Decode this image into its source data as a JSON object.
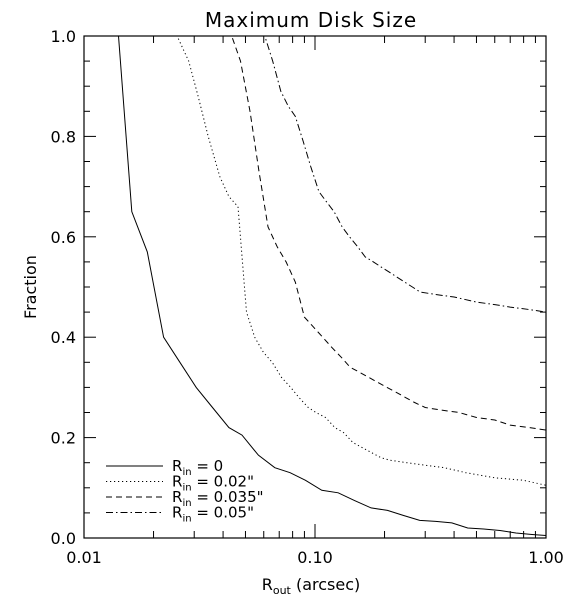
{
  "chart_data": {
    "type": "line",
    "title": "Maximum Disk Size",
    "xlabel": {
      "main": "R",
      "sub": "out",
      "rest": " (arcsec)"
    },
    "ylabel": "Fraction",
    "xscale": "log",
    "xlim": [
      0.01,
      1.0
    ],
    "ylim": [
      0.0,
      1.0
    ],
    "x_ticks": [
      {
        "value": 0.01,
        "label": "0.01"
      },
      {
        "value": 0.1,
        "label": "0.10"
      },
      {
        "value": 1.0,
        "label": "1.00"
      }
    ],
    "y_ticks": [
      {
        "value": 0.0,
        "label": "0.0"
      },
      {
        "value": 0.2,
        "label": "0.2"
      },
      {
        "value": 0.4,
        "label": "0.4"
      },
      {
        "value": 0.6,
        "label": "0.6"
      },
      {
        "value": 0.8,
        "label": "0.8"
      },
      {
        "value": 1.0,
        "label": "1.0"
      }
    ],
    "grid": false,
    "legend_position": "bottom-left",
    "series": [
      {
        "name": {
          "main": "R",
          "sub": "in",
          "rest": " = 0"
        },
        "style": "solid",
        "x": [
          0.0141,
          0.0161,
          0.0188,
          0.0221,
          0.026,
          0.0306,
          0.036,
          0.0424,
          0.0483,
          0.0569,
          0.067,
          0.078,
          0.091,
          0.107,
          0.126,
          0.148,
          0.175,
          0.206,
          0.241,
          0.284,
          0.333,
          0.391,
          0.458,
          0.537,
          0.632,
          0.741,
          0.87,
          1.0
        ],
        "y": [
          1.0,
          0.65,
          0.57,
          0.4,
          0.35,
          0.3,
          0.26,
          0.22,
          0.205,
          0.165,
          0.14,
          0.13,
          0.115,
          0.095,
          0.09,
          0.075,
          0.06,
          0.055,
          0.045,
          0.035,
          0.033,
          0.03,
          0.02,
          0.018,
          0.015,
          0.01,
          0.007,
          0.005
        ]
      },
      {
        "name": {
          "main": "R",
          "sub": "in",
          "rest": " = 0.02\""
        },
        "style": "dotted",
        "x": [
          0.0253,
          0.0284,
          0.0312,
          0.0345,
          0.0387,
          0.0424,
          0.0464,
          0.0505,
          0.0548,
          0.0598,
          0.0653,
          0.0716,
          0.0785,
          0.0852,
          0.0934,
          0.101,
          0.111,
          0.122,
          0.133,
          0.146,
          0.16,
          0.176,
          0.193,
          0.211,
          0.25,
          0.3,
          0.363,
          0.45,
          0.6,
          0.8,
          1.0
        ],
        "y": [
          1.0,
          0.95,
          0.88,
          0.8,
          0.72,
          0.68,
          0.66,
          0.45,
          0.4,
          0.37,
          0.35,
          0.32,
          0.3,
          0.28,
          0.26,
          0.25,
          0.24,
          0.22,
          0.21,
          0.19,
          0.18,
          0.17,
          0.16,
          0.155,
          0.15,
          0.145,
          0.14,
          0.13,
          0.12,
          0.115,
          0.105
        ]
      },
      {
        "name": {
          "main": "R",
          "sub": "in",
          "rest": " = 0.035\""
        },
        "style": "dashed",
        "x": [
          0.0436,
          0.0476,
          0.0523,
          0.0572,
          0.0626,
          0.0686,
          0.075,
          0.0822,
          0.09,
          0.0986,
          0.108,
          0.118,
          0.13,
          0.142,
          0.156,
          0.171,
          0.187,
          0.205,
          0.225,
          0.246,
          0.27,
          0.3,
          0.35,
          0.42,
          0.5,
          0.6,
          0.7,
          0.85,
          1.0
        ],
        "y": [
          1.0,
          0.95,
          0.85,
          0.73,
          0.62,
          0.58,
          0.55,
          0.51,
          0.44,
          0.42,
          0.4,
          0.38,
          0.36,
          0.34,
          0.33,
          0.32,
          0.31,
          0.3,
          0.29,
          0.28,
          0.27,
          0.26,
          0.255,
          0.25,
          0.24,
          0.235,
          0.225,
          0.22,
          0.215
        ]
      },
      {
        "name": {
          "main": "R",
          "sub": "in",
          "rest": " = 0.05\""
        },
        "style": "dashdot",
        "x": [
          0.0606,
          0.0656,
          0.0711,
          0.0766,
          0.0822,
          0.0889,
          0.0958,
          0.104,
          0.112,
          0.121,
          0.131,
          0.141,
          0.153,
          0.165,
          0.179,
          0.193,
          0.209,
          0.226,
          0.244,
          0.264,
          0.285,
          0.333,
          0.4,
          0.5,
          0.6,
          0.7,
          0.85,
          1.0
        ],
        "y": [
          1.0,
          0.95,
          0.89,
          0.86,
          0.84,
          0.79,
          0.74,
          0.69,
          0.67,
          0.65,
          0.62,
          0.6,
          0.58,
          0.56,
          0.55,
          0.54,
          0.53,
          0.52,
          0.51,
          0.5,
          0.49,
          0.485,
          0.48,
          0.47,
          0.465,
          0.46,
          0.455,
          0.45
        ]
      }
    ]
  }
}
